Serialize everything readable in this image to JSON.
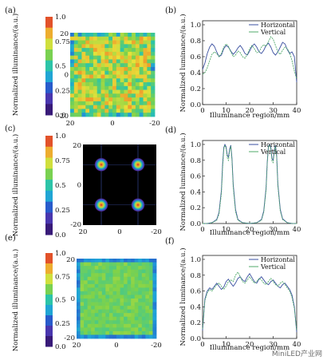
{
  "chart_data": [
    {
      "panel": "(a)",
      "type": "heatmap",
      "colorbar_label": "Normalized illuminance/(a.u.)",
      "colorbar_ticks": [
        "1.0",
        "0.75",
        "0.5",
        "0.25",
        "0.0"
      ],
      "colorbar_range": [
        0,
        1
      ],
      "x_ticks": [
        "20",
        "0",
        "-20"
      ],
      "y_ticks": [
        "20",
        "0",
        "-20"
      ],
      "pattern": "uniform-high",
      "mean_level": 0.68,
      "variation": 0.18
    },
    {
      "panel": "(b)",
      "type": "line",
      "xlabel": "Illuminance region/mm",
      "ylabel": "Normalized luminance/(a.u.)",
      "xlim": [
        0,
        40
      ],
      "ylim": [
        0,
        1.05
      ],
      "x_ticks": [
        "0",
        "10",
        "20",
        "30",
        "40"
      ],
      "y_ticks": [
        "0.0",
        "0.2",
        "0.4",
        "0.6",
        "0.8",
        "1.0"
      ],
      "x": [
        0,
        1,
        2,
        3,
        4,
        5,
        6,
        7,
        8,
        9,
        10,
        11,
        12,
        13,
        14,
        15,
        16,
        17,
        18,
        19,
        20,
        21,
        22,
        23,
        24,
        25,
        26,
        27,
        28,
        29,
        30,
        31,
        32,
        33,
        34,
        35,
        36,
        37,
        38,
        39,
        40
      ],
      "series": [
        {
          "name": "Horizontal",
          "color": "#3a4fa0",
          "values": [
            0.44,
            0.52,
            0.64,
            0.72,
            0.76,
            0.73,
            0.66,
            0.6,
            0.62,
            0.7,
            0.74,
            0.72,
            0.67,
            0.63,
            0.66,
            0.71,
            0.74,
            0.7,
            0.64,
            0.62,
            0.67,
            0.73,
            0.76,
            0.72,
            0.66,
            0.64,
            0.68,
            0.74,
            0.77,
            0.72,
            0.65,
            0.62,
            0.66,
            0.72,
            0.78,
            0.76,
            0.69,
            0.64,
            0.66,
            0.6,
            0.28
          ]
        },
        {
          "name": "Vertical",
          "color": "#4fa86a",
          "values": [
            0.38,
            0.4,
            0.46,
            0.55,
            0.63,
            0.66,
            0.64,
            0.6,
            0.64,
            0.72,
            0.76,
            0.73,
            0.66,
            0.6,
            0.62,
            0.67,
            0.65,
            0.6,
            0.58,
            0.63,
            0.7,
            0.74,
            0.7,
            0.65,
            0.66,
            0.72,
            0.75,
            0.73,
            0.79,
            0.85,
            0.82,
            0.74,
            0.66,
            0.63,
            0.68,
            0.72,
            0.7,
            0.65,
            0.55,
            0.42,
            0.32
          ]
        }
      ],
      "legend": "top-right"
    },
    {
      "panel": "(c)",
      "type": "heatmap",
      "colorbar_label": "Normalized illuminance/(a.u.)",
      "colorbar_ticks": [
        "1.0",
        "0.75",
        "0.5",
        "0.25",
        "0.0"
      ],
      "colorbar_range": [
        0,
        1
      ],
      "x_ticks": [
        "20",
        "0",
        "-20"
      ],
      "y_ticks": [
        "20",
        "0",
        "-20"
      ],
      "pattern": "four-spots",
      "spot_centers": [
        [
          10,
          10
        ],
        [
          -10,
          10
        ],
        [
          10,
          -10
        ],
        [
          -10,
          -10
        ]
      ],
      "spot_peak": 1.0,
      "background_level": 0.0
    },
    {
      "panel": "(d)",
      "type": "line",
      "xlabel": "Illuminance region/mm",
      "ylabel": "Normalized luminance/(a.u.)",
      "xlim": [
        0,
        40
      ],
      "ylim": [
        0,
        1.05
      ],
      "x_ticks": [
        "0",
        "10",
        "20",
        "30",
        "40"
      ],
      "y_ticks": [
        "0.0",
        "0.2",
        "0.4",
        "0.6",
        "0.8",
        "1.0"
      ],
      "x": [
        0,
        2,
        4,
        6,
        7,
        8,
        8.5,
        9,
        9.5,
        10,
        10.5,
        11,
        11.5,
        12,
        12.5,
        13,
        14,
        15,
        17,
        20,
        23,
        25,
        26,
        27,
        27.5,
        28,
        28.5,
        29,
        29.5,
        30,
        30.5,
        31,
        31.5,
        32,
        33,
        34,
        36,
        38,
        40
      ],
      "series": [
        {
          "name": "Horizontal",
          "color": "#3a4fa0",
          "values": [
            0.0,
            0.0,
            0.01,
            0.05,
            0.14,
            0.42,
            0.75,
            0.96,
            1.0,
            0.97,
            0.86,
            0.84,
            0.94,
            0.99,
            0.82,
            0.5,
            0.18,
            0.05,
            0.01,
            0.0,
            0.01,
            0.05,
            0.16,
            0.45,
            0.78,
            0.98,
            1.0,
            0.96,
            0.82,
            0.8,
            0.93,
            0.99,
            0.86,
            0.5,
            0.18,
            0.06,
            0.01,
            0.0,
            0.0
          ]
        },
        {
          "name": "Vertical",
          "color": "#4fa86a",
          "values": [
            0.0,
            0.0,
            0.01,
            0.04,
            0.12,
            0.38,
            0.7,
            0.94,
            0.99,
            0.95,
            0.83,
            0.8,
            0.92,
            0.98,
            0.79,
            0.46,
            0.15,
            0.04,
            0.01,
            0.0,
            0.01,
            0.04,
            0.14,
            0.42,
            0.76,
            0.97,
            0.99,
            0.94,
            0.79,
            0.77,
            0.91,
            0.98,
            0.84,
            0.47,
            0.16,
            0.05,
            0.01,
            0.0,
            0.0
          ]
        }
      ],
      "legend": "top-right"
    },
    {
      "panel": "(e)",
      "type": "heatmap",
      "colorbar_label": "Normalized illuminance/(a.u.)",
      "colorbar_ticks": [
        "1.0",
        "0.75",
        "0.5",
        "0.25",
        "0.0"
      ],
      "colorbar_range": [
        0,
        1
      ],
      "x_ticks": [
        "20",
        "0",
        "-20"
      ],
      "y_ticks": [
        "20",
        "0",
        "-20"
      ],
      "pattern": "uniform-mid",
      "mean_level": 0.6,
      "variation": 0.05
    },
    {
      "panel": "(f)",
      "type": "line",
      "xlabel": "Illuminance region/mm",
      "ylabel": "Normalized luminance/(a.u.)",
      "xlim": [
        0,
        40
      ],
      "ylim": [
        0,
        1.05
      ],
      "x_ticks": [
        "0",
        "10",
        "20",
        "30",
        "40"
      ],
      "y_ticks": [
        "0.0",
        "0.2",
        "0.4",
        "0.6",
        "0.8",
        "1.0"
      ],
      "x": [
        0,
        1,
        2,
        3,
        4,
        5,
        6,
        7,
        8,
        9,
        10,
        11,
        12,
        13,
        14,
        15,
        16,
        17,
        18,
        19,
        20,
        21,
        22,
        23,
        24,
        25,
        26,
        27,
        28,
        29,
        30,
        31,
        32,
        33,
        34,
        35,
        36,
        37,
        38,
        39,
        40
      ],
      "series": [
        {
          "name": "Horizontal",
          "color": "#3a4fa0",
          "values": [
            0.1,
            0.5,
            0.6,
            0.64,
            0.62,
            0.66,
            0.7,
            0.66,
            0.62,
            0.65,
            0.72,
            0.75,
            0.7,
            0.66,
            0.7,
            0.76,
            0.78,
            0.74,
            0.72,
            0.78,
            0.82,
            0.77,
            0.72,
            0.7,
            0.75,
            0.78,
            0.74,
            0.7,
            0.68,
            0.72,
            0.74,
            0.7,
            0.66,
            0.64,
            0.68,
            0.7,
            0.66,
            0.62,
            0.55,
            0.4,
            0.08
          ]
        },
        {
          "name": "Vertical",
          "color": "#4fa86a",
          "values": [
            0.12,
            0.48,
            0.58,
            0.62,
            0.6,
            0.64,
            0.68,
            0.7,
            0.66,
            0.62,
            0.66,
            0.72,
            0.74,
            0.72,
            0.8,
            0.84,
            0.78,
            0.72,
            0.7,
            0.74,
            0.78,
            0.74,
            0.7,
            0.72,
            0.76,
            0.74,
            0.7,
            0.68,
            0.72,
            0.76,
            0.72,
            0.68,
            0.66,
            0.7,
            0.72,
            0.68,
            0.64,
            0.6,
            0.52,
            0.38,
            0.1
          ]
        }
      ],
      "legend": "top-right"
    }
  ],
  "watermark": "MiniLED产业网"
}
